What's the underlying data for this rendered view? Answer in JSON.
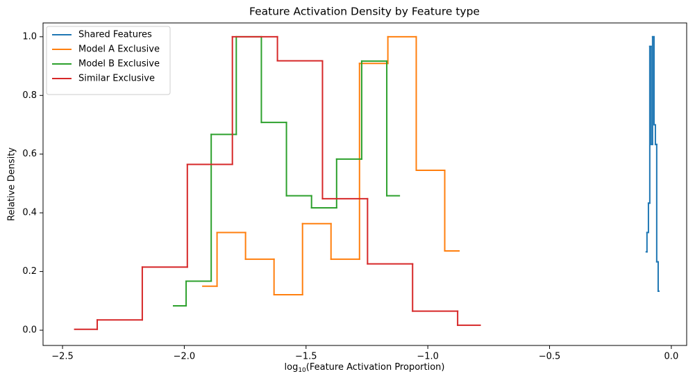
{
  "chart_data": {
    "type": "step",
    "step_where": "mid",
    "title": "Feature Activation Density by Feature type",
    "xlabel": [
      "log",
      "10",
      "(Feature Activation Proportion)"
    ],
    "ylabel": "Relative Density",
    "xlim": [
      -2.58,
      0.063
    ],
    "ylim": [
      -0.052,
      1.047
    ],
    "xticks": [
      {
        "value": -2.5,
        "label": "−2.5"
      },
      {
        "value": -2.0,
        "label": "−2.0"
      },
      {
        "value": -1.5,
        "label": "−1.5"
      },
      {
        "value": -1.0,
        "label": "−1.0"
      },
      {
        "value": -0.5,
        "label": "−0.5"
      },
      {
        "value": 0.0,
        "label": "0.0"
      }
    ],
    "yticks": [
      {
        "value": 0.0,
        "label": "0.0"
      },
      {
        "value": 0.2,
        "label": "0.2"
      },
      {
        "value": 0.4,
        "label": "0.4"
      },
      {
        "value": 0.6,
        "label": "0.6"
      },
      {
        "value": 0.8,
        "label": "0.8"
      },
      {
        "value": 1.0,
        "label": "1.0"
      }
    ],
    "grid": false,
    "legend": "upper left",
    "series": [
      {
        "name": "Shared Features",
        "color": "#1f77b4",
        "x": [
          -0.103,
          -0.097,
          -0.091,
          -0.086,
          -0.08,
          -0.074,
          -0.068,
          -0.063,
          -0.057,
          -0.051
        ],
        "values": [
          0.267,
          0.333,
          0.433,
          0.967,
          0.633,
          1.0,
          0.7,
          0.633,
          0.233,
          0.133
        ]
      },
      {
        "name": "Model A Exclusive",
        "color": "#ff7f0e",
        "x": [
          -1.924,
          -1.807,
          -1.69,
          -1.573,
          -1.456,
          -1.339,
          -1.222,
          -1.106,
          -0.989,
          -0.872
        ],
        "values": [
          0.15,
          0.333,
          0.242,
          0.121,
          0.363,
          0.242,
          0.909,
          1.0,
          0.545,
          0.27
        ]
      },
      {
        "name": "Model B Exclusive",
        "color": "#2ca02c",
        "x": [
          -2.044,
          -1.941,
          -1.838,
          -1.735,
          -1.632,
          -1.529,
          -1.426,
          -1.323,
          -1.22,
          -1.117
        ],
        "values": [
          0.083,
          0.167,
          0.667,
          1.0,
          0.708,
          0.458,
          0.417,
          0.583,
          0.917,
          0.458
        ]
      },
      {
        "name": "Similar Exclusive",
        "color": "#d62728",
        "x": [
          -2.45,
          -2.265,
          -2.08,
          -1.895,
          -1.71,
          -1.525,
          -1.34,
          -1.155,
          -0.97,
          -0.785
        ],
        "values": [
          0.003,
          0.035,
          0.215,
          0.565,
          1.0,
          0.918,
          0.448,
          0.226,
          0.065,
          0.017
        ]
      }
    ]
  }
}
